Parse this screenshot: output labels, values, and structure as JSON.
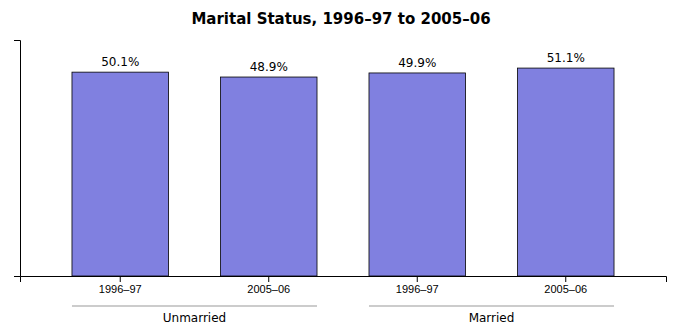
{
  "chart_data": {
    "type": "bar",
    "title": "Marital Status, 1996–97 to 2005–06",
    "categories": [
      "1996–97",
      "2005–06",
      "1996–97",
      "2005–06"
    ],
    "values": [
      50.1,
      48.9,
      49.9,
      51.1
    ],
    "value_labels": [
      "50.1%",
      "48.9%",
      "49.9%",
      "51.1%"
    ],
    "data_labels": true,
    "annotations": [
      "Unmarried",
      "Married"
    ],
    "color": "#8080e0",
    "ylim": [
      0,
      58
    ],
    "yticks": [],
    "tick_labels": "x",
    "grid": false
  }
}
